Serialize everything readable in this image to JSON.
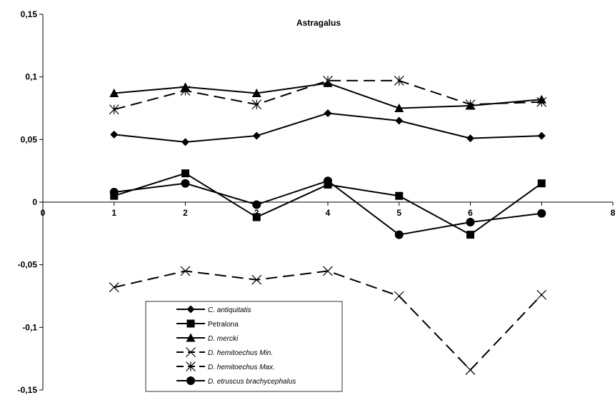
{
  "chart_data": {
    "type": "line",
    "title": "Astragalus",
    "xlabel": "",
    "ylabel": "",
    "x": [
      1,
      2,
      3,
      4,
      5,
      6,
      7
    ],
    "xlim": [
      0,
      8
    ],
    "ylim": [
      -0.15,
      0.15
    ],
    "x_tick_labels": [
      "0",
      "1",
      "2",
      "3",
      "4",
      "5",
      "6",
      "7",
      "8"
    ],
    "y_tick_labels": [
      "0,15",
      "0,1",
      "0,05",
      "0",
      "-0,05",
      "-0,1",
      "-0,15"
    ],
    "y_ticks": [
      0.15,
      0.1,
      0.05,
      0,
      -0.05,
      -0.1,
      -0.15
    ],
    "grid": false,
    "legend_position": "bottom-center",
    "series": [
      {
        "name": "C. antiquitatis",
        "italic": true,
        "marker": "diamond",
        "dash": "solid",
        "color": "#000000",
        "values": [
          0.054,
          0.048,
          0.053,
          0.071,
          0.065,
          0.051,
          0.053
        ]
      },
      {
        "name": "Petralona",
        "italic": false,
        "marker": "square",
        "dash": "solid",
        "color": "#000000",
        "values": [
          0.005,
          0.023,
          -0.012,
          0.014,
          0.005,
          -0.026,
          0.015
        ]
      },
      {
        "name": "D. mercki",
        "italic": true,
        "marker": "triangle",
        "dash": "solid",
        "color": "#000000",
        "values": [
          0.087,
          0.092,
          0.087,
          0.095,
          0.075,
          0.077,
          0.082
        ]
      },
      {
        "name": "D. hemitoechus Min.",
        "italic": true,
        "marker": "x",
        "dash": "dashed",
        "color": "#000000",
        "values": [
          -0.068,
          -0.055,
          -0.062,
          -0.055,
          -0.075,
          -0.134,
          -0.074
        ]
      },
      {
        "name": "D. hemitoechus Max.",
        "italic": true,
        "marker": "star",
        "dash": "dashed",
        "color": "#000000",
        "values": [
          0.074,
          0.089,
          0.078,
          0.097,
          0.097,
          0.078,
          0.08
        ]
      },
      {
        "name": "D. etruscus brachycephalus",
        "italic": true,
        "marker": "circle",
        "dash": "solid",
        "color": "#000000",
        "values": [
          0.008,
          0.015,
          -0.002,
          0.017,
          -0.026,
          -0.016,
          -0.009
        ]
      }
    ]
  }
}
